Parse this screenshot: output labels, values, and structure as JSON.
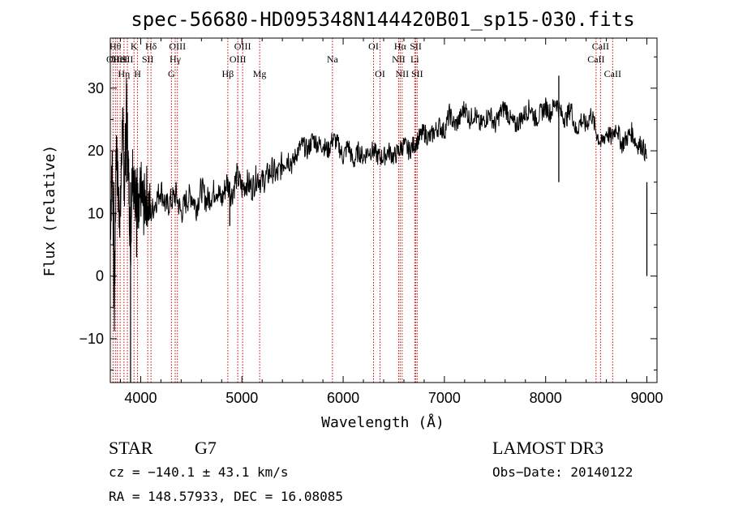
{
  "chart_data": {
    "type": "line",
    "title": "spec-56680-HD095348N144420B01_sp15-030.fits",
    "xlabel": "Wavelength (Å)",
    "ylabel": "Flux (relative)",
    "xlim": [
      3700,
      9100
    ],
    "ylim": [
      -17,
      38
    ],
    "xticks": [
      4000,
      5000,
      6000,
      7000,
      8000,
      9000
    ],
    "yticks": [
      -10,
      0,
      10,
      20,
      30
    ],
    "xtick_labels": [
      "4000",
      "5000",
      "6000",
      "7000",
      "8000",
      "9000"
    ],
    "ytick_labels": [
      "−10",
      "0",
      "10",
      "20",
      "30"
    ],
    "series": [
      {
        "name": "flux",
        "x": [
          3700,
          3720,
          3740,
          3760,
          3780,
          3800,
          3820,
          3840,
          3860,
          3880,
          3900,
          3920,
          3940,
          3960,
          3980,
          4000,
          4030,
          4060,
          4100,
          4150,
          4200,
          4250,
          4300,
          4350,
          4400,
          4450,
          4500,
          4550,
          4600,
          4650,
          4700,
          4750,
          4800,
          4850,
          4900,
          4950,
          5000,
          5050,
          5100,
          5150,
          5200,
          5250,
          5300,
          5350,
          5400,
          5450,
          5500,
          5550,
          5600,
          5650,
          5700,
          5750,
          5800,
          5850,
          5900,
          5950,
          6000,
          6050,
          6100,
          6150,
          6200,
          6250,
          6300,
          6350,
          6400,
          6450,
          6500,
          6550,
          6600,
          6650,
          6700,
          6750,
          6800,
          6850,
          6900,
          6950,
          7000,
          7050,
          7100,
          7150,
          7200,
          7250,
          7300,
          7350,
          7400,
          7450,
          7500,
          7550,
          7600,
          7650,
          7700,
          7750,
          7800,
          7850,
          7900,
          7950,
          8000,
          8050,
          8100,
          8150,
          8200,
          8250,
          8300,
          8350,
          8400,
          8450,
          8500,
          8550,
          8600,
          8650,
          8700,
          8750,
          8800,
          8850,
          8900,
          8950,
          9000
        ],
        "y": [
          8,
          18,
          -5,
          22,
          12,
          10,
          25,
          14,
          28,
          16,
          5,
          19,
          12,
          15,
          8,
          14,
          11,
          13,
          10,
          12,
          14,
          11,
          12,
          13,
          10,
          12,
          13,
          11,
          14,
          12,
          13,
          14,
          12,
          15,
          13,
          16,
          14,
          15,
          14,
          16,
          15,
          16,
          17,
          16,
          18,
          19,
          18,
          20,
          21,
          20,
          22,
          21,
          21,
          20,
          22,
          21,
          19,
          21,
          18,
          20,
          19,
          20,
          20,
          19,
          19,
          20,
          19,
          20,
          21,
          20,
          21,
          22,
          23,
          22,
          23,
          24,
          23,
          26,
          24,
          25,
          27,
          25,
          26,
          24,
          25,
          26,
          24,
          26,
          27,
          25,
          24,
          25,
          26,
          27,
          25,
          26,
          27,
          26,
          28,
          26,
          25,
          27,
          23,
          25,
          24,
          26,
          23,
          21,
          23,
          22,
          24,
          21,
          22,
          23,
          21,
          21,
          19
        ],
        "spikes": [
          {
            "x": 3735,
            "y": -5
          },
          {
            "x": 3860,
            "y": 28
          },
          {
            "x": 3900,
            "y": -17
          },
          {
            "x": 3960,
            "y": 3
          },
          {
            "x": 4880,
            "y": 8
          },
          {
            "x": 8130,
            "y": 32
          },
          {
            "x": 9000,
            "y": 0
          }
        ]
      }
    ],
    "lines": [
      {
        "x": 3727,
        "label": "OII",
        "row": 2
      },
      {
        "x": 3750,
        "label": "Hθ",
        "row": 1
      },
      {
        "x": 3770,
        "label": "OIII",
        "row": 2
      },
      {
        "x": 3797,
        "label": "HeI",
        "row": 2
      },
      {
        "x": 3835,
        "label": "Hη",
        "row": 3
      },
      {
        "x": 3869,
        "label": "SII",
        "row": 2
      },
      {
        "x": 3934,
        "label": "K",
        "row": 1
      },
      {
        "x": 3969,
        "label": "H",
        "row": 3
      },
      {
        "x": 4070,
        "label": "SII",
        "row": 2
      },
      {
        "x": 4102,
        "label": "Hδ",
        "row": 1
      },
      {
        "x": 4304,
        "label": "G",
        "row": 3
      },
      {
        "x": 4341,
        "label": "Hγ",
        "row": 2
      },
      {
        "x": 4363,
        "label": "OIII",
        "row": 1
      },
      {
        "x": 4861,
        "label": "Hβ",
        "row": 3
      },
      {
        "x": 4959,
        "label": "OIII",
        "row": 2
      },
      {
        "x": 5007,
        "label": "OIII",
        "row": 1
      },
      {
        "x": 5175,
        "label": "Mg",
        "row": 3
      },
      {
        "x": 5894,
        "label": "Na",
        "row": 2
      },
      {
        "x": 6300,
        "label": "OI",
        "row": 1
      },
      {
        "x": 6364,
        "label": "OI",
        "row": 3
      },
      {
        "x": 6548,
        "label": "NII",
        "row": 2
      },
      {
        "x": 6563,
        "label": "Hα",
        "row": 1
      },
      {
        "x": 6583,
        "label": "NII",
        "row": 3
      },
      {
        "x": 6707,
        "label": "Li",
        "row": 2
      },
      {
        "x": 6717,
        "label": "SII",
        "row": 1
      },
      {
        "x": 6731,
        "label": "SII",
        "row": 3
      },
      {
        "x": 8498,
        "label": "CaII",
        "row": 2
      },
      {
        "x": 8542,
        "label": "CaII",
        "row": 1
      },
      {
        "x": 8662,
        "label": "CaII",
        "row": 3
      }
    ]
  },
  "info": {
    "class": "STAR",
    "subclass": "G7",
    "survey": "LAMOST DR3",
    "cz": "cz = −140.1 ± 43.1 km/s",
    "obs_date": "Obs−Date: 20140122",
    "radec": "RA = 148.57933, DEC =  16.08085"
  },
  "colors": {
    "line_marker": "#cc0000",
    "spectrum": "#000000"
  }
}
